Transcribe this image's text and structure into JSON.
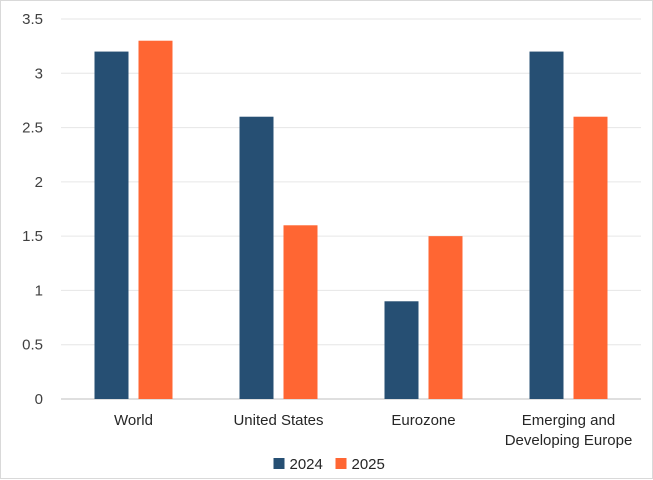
{
  "chart_data": {
    "type": "bar",
    "categories": [
      [
        "World"
      ],
      [
        "United States"
      ],
      [
        "Eurozone"
      ],
      [
        "Emerging and",
        "Developing Europe"
      ]
    ],
    "series": [
      {
        "name": "2024",
        "color": "#264f73",
        "values": [
          3.2,
          2.6,
          0.9,
          3.2
        ]
      },
      {
        "name": "2025",
        "color": "#ff6633",
        "values": [
          3.3,
          1.6,
          1.5,
          2.6
        ]
      }
    ],
    "ylim": [
      0,
      3.5
    ],
    "yticks": [
      "0",
      "0.5",
      "1",
      "1.5",
      "2",
      "2.5",
      "3",
      "3.5"
    ],
    "grid": true,
    "legend_position": "bottom"
  }
}
